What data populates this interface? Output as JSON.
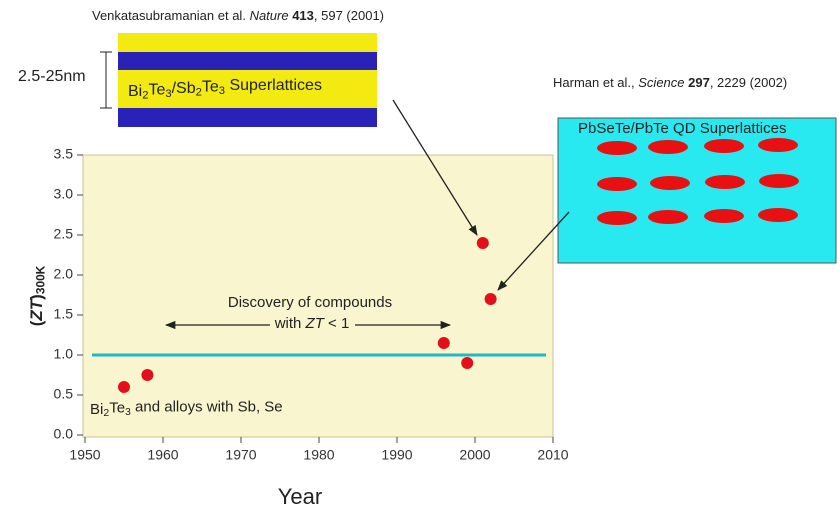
{
  "chart_data": {
    "type": "scatter",
    "xlabel": "Year",
    "ylabel": [
      {
        "text": "(",
        "style": "bold"
      },
      {
        "text": "ZT",
        "style": "bolditalic"
      },
      {
        "text": ")",
        "style": "bold"
      },
      {
        "text": "300K",
        "style": "boldsub"
      }
    ],
    "x": [
      1955,
      1958,
      1996,
      1999,
      2001,
      2002
    ],
    "values": [
      0.6,
      0.75,
      1.15,
      0.9,
      2.4,
      1.7
    ],
    "color": "#e3101c",
    "xlim": [
      1950,
      2010
    ],
    "ylim": [
      0,
      3.5
    ],
    "xticks": [
      1950,
      1960,
      1970,
      1980,
      1990,
      2000,
      2010
    ],
    "yticks": [
      {
        "value": 0,
        "label": "0.0"
      },
      0.5,
      {
        "value": 1,
        "label": "1.0"
      },
      1.5,
      {
        "value": 2,
        "label": "2.0"
      },
      2.5,
      {
        "value": 3,
        "label": "3.0"
      },
      3.5
    ],
    "hline": {
      "value": 1,
      "color": "#1fb8c8"
    },
    "annotations": [
      [
        {
          "text": "Venkatasubramanian et al. ",
          "style": "normal"
        },
        {
          "text": "Nature",
          "style": "italic"
        },
        {
          "text": " 413",
          "style": "bold"
        },
        {
          "text": ", 597 (2001)",
          "style": "normal"
        }
      ],
      [
        {
          "text": "2.5-25nm",
          "style": "normal"
        }
      ],
      [
        {
          "text": "Bi",
          "style": "normal"
        },
        {
          "text": "2",
          "style": "sub"
        },
        {
          "text": "Te",
          "style": "normal"
        },
        {
          "text": "3",
          "style": "sub"
        },
        {
          "text": "/Sb",
          "style": "normal"
        },
        {
          "text": "2",
          "style": "sub"
        },
        {
          "text": "Te",
          "style": "normal"
        },
        {
          "text": "3",
          "style": "sub"
        },
        {
          "text": " Superlattices",
          "style": "normal"
        }
      ],
      [
        {
          "text": "Harman et al., ",
          "style": "normal"
        },
        {
          "text": "Science",
          "style": "italic"
        },
        {
          "text": " 297",
          "style": "bold"
        },
        {
          "text": ", 2229 (2002)",
          "style": "normal"
        }
      ],
      [
        {
          "text": "PbSeTe/PbTe QD Superlattices",
          "style": "normal"
        }
      ],
      [
        {
          "text": "Discovery of compounds",
          "style": "normal"
        }
      ],
      [
        {
          "text": "with ",
          "style": "normal"
        },
        {
          "text": "ZT",
          "style": "italic"
        },
        {
          "text": " < 1",
          "style": "normal"
        }
      ],
      [
        {
          "text": "Bi",
          "style": "normal"
        },
        {
          "text": "2",
          "style": "sub"
        },
        {
          "text": "Te",
          "style": "normal"
        },
        {
          "text": "3",
          "style": "sub"
        },
        {
          "text": " and alloys with Sb, Se",
          "style": "normal"
        }
      ]
    ]
  }
}
